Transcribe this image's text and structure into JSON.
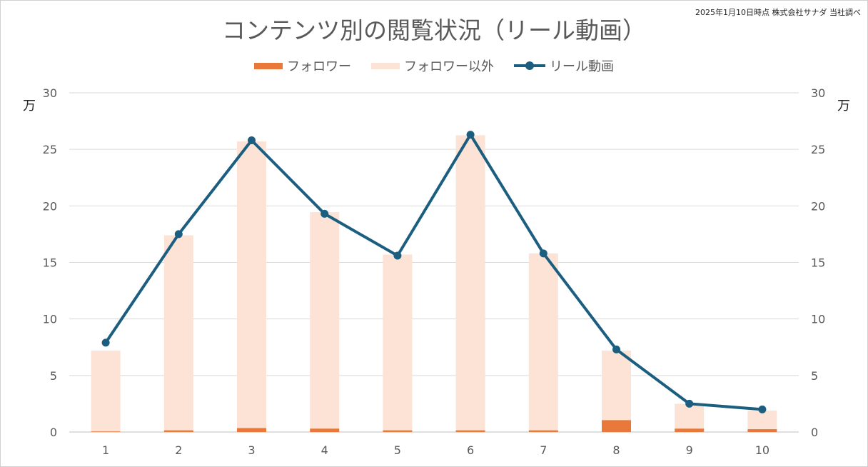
{
  "chart_data": {
    "type": "bar",
    "title": "コンテンツ別の閲覧状況（リール動画）",
    "source_note": "2025年1月10日時点 株式会社サナダ 当社調べ",
    "categories": [
      "1",
      "2",
      "3",
      "4",
      "5",
      "6",
      "7",
      "8",
      "9",
      "10"
    ],
    "stacked": true,
    "series": [
      {
        "name": "フォロワー",
        "type": "bar",
        "color": "#e8793a",
        "values": [
          0.05,
          0.15,
          0.35,
          0.3,
          0.15,
          0.15,
          0.15,
          1.05,
          0.3,
          0.25
        ]
      },
      {
        "name": "フォロワー以外",
        "type": "bar",
        "color": "#fce3d6",
        "values": [
          7.15,
          17.25,
          25.35,
          19.15,
          15.55,
          26.1,
          15.65,
          6.15,
          2.2,
          1.65
        ]
      },
      {
        "name": "リール動画",
        "type": "line",
        "color": "#1b5e80",
        "values": [
          7.9,
          17.5,
          25.8,
          19.3,
          15.6,
          26.3,
          15.8,
          7.3,
          2.5,
          2.0
        ]
      }
    ],
    "ylim": [
      0,
      30
    ],
    "yticks": [
      "0",
      "5",
      "10",
      "15",
      "20",
      "25",
      "30"
    ],
    "y_unit_left": "万",
    "y_unit_right": "万",
    "grid": true,
    "legend_position": "top"
  }
}
